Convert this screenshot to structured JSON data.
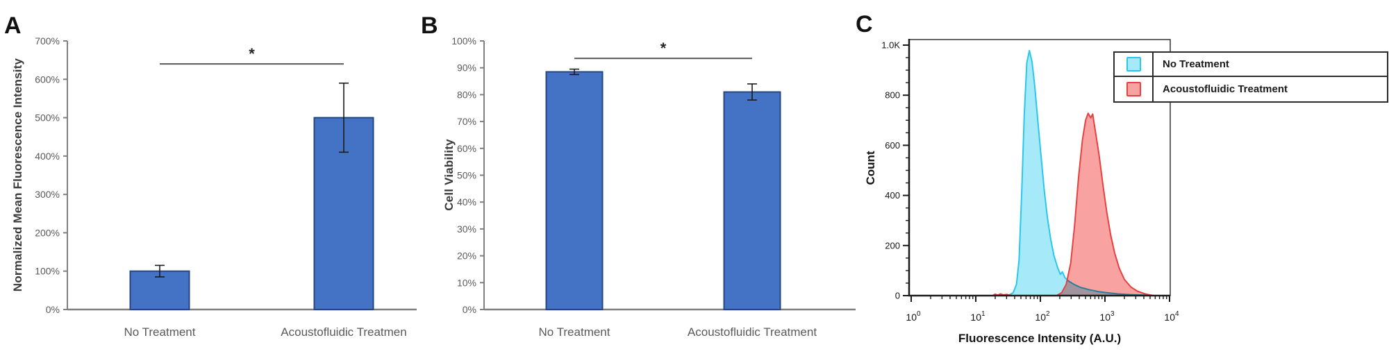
{
  "panel_letters": [
    "A",
    "B",
    "C"
  ],
  "figure": {
    "background": "#ffffff",
    "bar_fill": "#4472C4",
    "bar_stroke": "#24477F",
    "axis_color": "#7f7f7f",
    "tick_label_color": "#595959",
    "sig_line_color": "#595959",
    "sig_star_color": "#262626",
    "error_bar_color": "#1a1a1a",
    "flow_axis_color": "#1a1a1a"
  },
  "chart_data": [
    {
      "id": "A",
      "type": "bar",
      "title": "",
      "xlabel": "",
      "ylabel": "Normalized Mean Fluorescence Intensity",
      "categories": [
        "No Treatment",
        "Acoustofluidic Treatmen"
      ],
      "values": [
        100,
        500
      ],
      "errors": [
        15,
        90
      ],
      "ylim": [
        0,
        700
      ],
      "ytick_values": [
        0,
        100,
        200,
        300,
        400,
        500,
        600,
        700
      ],
      "ytick_labels": [
        "0%",
        "100%",
        "200%",
        "300%",
        "400%",
        "500%",
        "600%",
        "700%"
      ],
      "grid": false,
      "significance": {
        "label": "*",
        "between": [
          0,
          1
        ],
        "y": 640
      }
    },
    {
      "id": "B",
      "type": "bar",
      "title": "",
      "xlabel": "",
      "ylabel": "Cell Viability",
      "categories": [
        "No Treatment",
        "Acoustofluidic Treatment"
      ],
      "values": [
        88.5,
        81
      ],
      "errors": [
        1,
        3
      ],
      "ylim": [
        0,
        100
      ],
      "ytick_values": [
        0,
        10,
        20,
        30,
        40,
        50,
        60,
        70,
        80,
        90,
        100
      ],
      "ytick_labels": [
        "0%",
        "10%",
        "20%",
        "30%",
        "40%",
        "50%",
        "60%",
        "70%",
        "80%",
        "90%",
        "100%"
      ],
      "grid": false,
      "significance": {
        "label": "*",
        "between": [
          0,
          1
        ],
        "y": 93.5
      }
    },
    {
      "id": "C",
      "type": "area",
      "title": "",
      "xlabel": "Fluorescence Intensity (A.U.)",
      "ylabel": "Count",
      "x_scale": "log10",
      "xlim_exponents": [
        0,
        4
      ],
      "xtick_exponents": [
        0,
        1,
        2,
        3,
        4
      ],
      "xtick_base": "10",
      "ylim": [
        0,
        1000
      ],
      "ytick_values": [
        0,
        200,
        400,
        600,
        800,
        1000
      ],
      "ytick_labels": [
        "0",
        "200",
        "400",
        "600",
        "800",
        "1.0K"
      ],
      "y_minor_step": 50,
      "grid": false,
      "legend_position": "top-right",
      "series": [
        {
          "name": "No Treatment",
          "fill": "#A6E9F9",
          "stroke": "#29C7EE",
          "log_x": [
            1.5,
            1.58,
            1.63,
            1.67,
            1.71,
            1.75,
            1.79,
            1.83,
            1.87,
            1.91,
            1.96,
            2.01,
            2.06,
            2.11,
            2.16,
            2.21,
            2.27,
            2.31,
            2.34,
            2.38,
            2.44,
            2.52,
            2.62,
            2.75,
            2.9,
            3.05,
            3.2,
            3.4,
            3.6,
            3.8
          ],
          "counts": [
            0,
            12,
            45,
            140,
            400,
            720,
            930,
            978,
            935,
            845,
            700,
            560,
            420,
            310,
            225,
            160,
            110,
            85,
            95,
            72,
            58,
            45,
            33,
            24,
            16,
            11,
            7,
            4,
            2,
            0
          ]
        },
        {
          "name": "Acoustofluidic Treatment",
          "fill": "#F9A2A2",
          "stroke": "#E84040",
          "log_x": [
            1.26,
            1.3,
            1.34,
            1.38,
            1.43,
            1.48,
            1.55,
            2.25,
            2.33,
            2.4,
            2.47,
            2.53,
            2.59,
            2.65,
            2.7,
            2.74,
            2.78,
            2.81,
            2.85,
            2.91,
            2.97,
            3.03,
            3.09,
            3.15,
            3.22,
            3.3,
            3.4,
            3.5,
            3.62,
            3.75
          ],
          "counts": [
            0,
            6,
            2,
            7,
            3,
            5,
            0,
            0,
            12,
            45,
            130,
            280,
            470,
            620,
            700,
            728,
            710,
            725,
            660,
            560,
            440,
            330,
            240,
            170,
            110,
            65,
            35,
            18,
            7,
            0
          ]
        }
      ]
    }
  ]
}
